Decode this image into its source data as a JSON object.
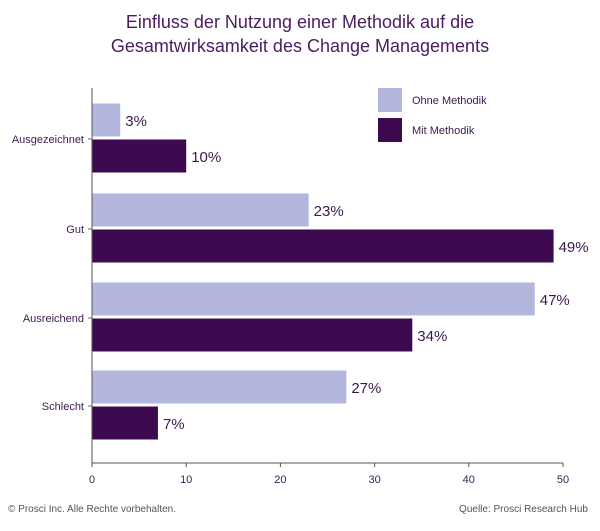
{
  "chart_data": {
    "type": "bar",
    "orientation": "horizontal",
    "title_lines": [
      "Einfluss der Nutzung einer Methodik auf die",
      "Gesamtwirksamkeit des Change Managements"
    ],
    "categories": [
      "Ausgezeichnet",
      "Gut",
      "Ausreichend",
      "Schlecht"
    ],
    "series": [
      {
        "name": "Ohne Methodik",
        "color": "#b3b7de",
        "values": [
          3,
          23,
          47,
          27
        ],
        "labels": [
          "3%",
          "23%",
          "47%",
          "27%"
        ]
      },
      {
        "name": "Mit Methodik",
        "color": "#3d0a4f",
        "values": [
          10,
          49,
          34,
          7
        ],
        "labels": [
          "10%",
          "49%",
          "34%",
          "7%"
        ]
      }
    ],
    "xlim": [
      0,
      50
    ],
    "xticks": [
      0,
      10,
      20,
      30,
      40,
      50
    ],
    "grid": false,
    "legend": "top-right"
  },
  "footer": {
    "copyright": "© Prosci Inc. Alle Rechte vorbehalten.",
    "source": "Quelle: Prosci Research Hub"
  }
}
